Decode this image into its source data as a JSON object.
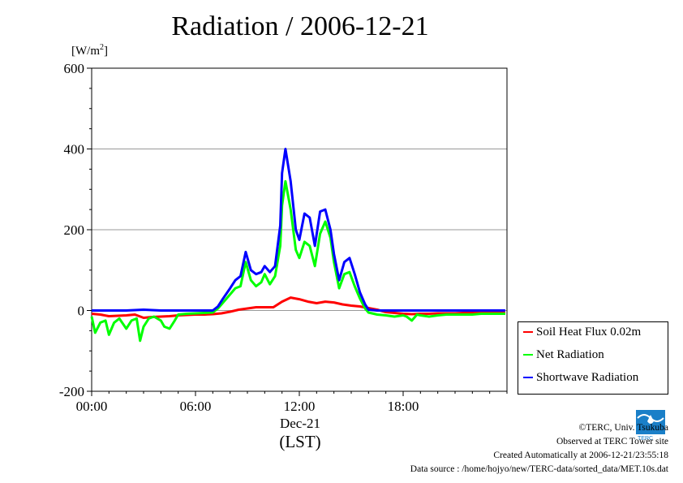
{
  "title": "Radiation / 2006-12-21",
  "unit_label": "[W/m",
  "unit_sup": "2",
  "unit_close": "]",
  "x_date_label": "Dec-21",
  "x_axis_label": "(LST)",
  "credits": {
    "line1": "©TERC, Univ. Tsukuba",
    "line2": "Observed at TERC Tower site",
    "line3": "Created Automatically at 2006-12-21/23:55:18",
    "line4": "Data source : /home/hojyo/new/TERC-data/sorted_data/MET.10s.dat"
  },
  "logo_text": "TERC",
  "colors": {
    "soil": "#ff0000",
    "net": "#00ff00",
    "shortwave": "#0000ff",
    "grid": "#999999"
  },
  "chart_data": {
    "type": "line",
    "title": "Radiation / 2006-12-21",
    "ylabel": "[W/m2]",
    "xlabel": "(LST)",
    "x_unit": "hour (LST)",
    "xlim": [
      0,
      24
    ],
    "ylim": [
      -200,
      600
    ],
    "x_ticks": [
      {
        "value": 0,
        "label": "00:00"
      },
      {
        "value": 6,
        "label": "06:00"
      },
      {
        "value": 12,
        "label": "12:00"
      },
      {
        "value": 18,
        "label": "18:00"
      }
    ],
    "y_ticks": [
      -200,
      0,
      200,
      400,
      600
    ],
    "grid": true,
    "legend_position": "bottom-right",
    "series": [
      {
        "name": "Soil Heat Flux 0.02m",
        "color": "#ff0000",
        "x": [
          0,
          0.5,
          1,
          1.5,
          2,
          2.5,
          3,
          3.5,
          4,
          4.5,
          5,
          5.5,
          6,
          6.5,
          7,
          7.5,
          8,
          8.5,
          9,
          9.5,
          10,
          10.5,
          11,
          11.5,
          12,
          12.5,
          13,
          13.5,
          14,
          14.5,
          15,
          15.5,
          16,
          16.5,
          17,
          17.5,
          18,
          18.5,
          19,
          19.5,
          20,
          20.5,
          21,
          21.5,
          22,
          22.5,
          23,
          23.5,
          23.9
        ],
        "y": [
          -8,
          -10,
          -14,
          -13,
          -12,
          -10,
          -18,
          -16,
          -15,
          -14,
          -12,
          -11,
          -10,
          -10,
          -9,
          -7,
          -3,
          2,
          5,
          8,
          8,
          8,
          22,
          32,
          28,
          22,
          18,
          22,
          20,
          15,
          12,
          10,
          6,
          2,
          -4,
          -6,
          -8,
          -9,
          -8,
          -8,
          -7,
          -7,
          -7,
          -6,
          -6,
          -6,
          -6,
          -6,
          -6
        ]
      },
      {
        "name": "Net Radiation",
        "color": "#00ff00",
        "x": [
          0,
          0.2,
          0.5,
          0.8,
          1,
          1.3,
          1.6,
          2,
          2.3,
          2.6,
          2.8,
          3,
          3.3,
          3.6,
          4,
          4.2,
          4.5,
          4.8,
          5,
          5.5,
          6,
          6.5,
          7,
          7.3,
          7.6,
          8,
          8.3,
          8.6,
          8.9,
          9.2,
          9.5,
          9.8,
          10,
          10.3,
          10.6,
          10.9,
          11,
          11.2,
          11.5,
          11.8,
          12,
          12.3,
          12.6,
          12.9,
          13.2,
          13.5,
          13.8,
          14,
          14.3,
          14.6,
          14.9,
          15.2,
          15.5,
          15.8,
          16,
          16.5,
          17,
          17.5,
          18,
          18.2,
          18.5,
          18.8,
          19,
          19.5,
          20,
          20.5,
          21,
          21.5,
          22,
          22.5,
          23,
          23.5,
          23.9
        ],
        "y": [
          -15,
          -55,
          -30,
          -25,
          -60,
          -30,
          -20,
          -45,
          -25,
          -20,
          -75,
          -40,
          -20,
          -15,
          -25,
          -40,
          -45,
          -25,
          -10,
          -8,
          -7,
          -6,
          -5,
          5,
          20,
          40,
          55,
          60,
          120,
          75,
          60,
          70,
          90,
          65,
          85,
          160,
          260,
          320,
          250,
          150,
          130,
          170,
          160,
          110,
          190,
          220,
          180,
          120,
          55,
          90,
          95,
          60,
          30,
          5,
          -5,
          -10,
          -12,
          -15,
          -12,
          -15,
          -25,
          -10,
          -12,
          -15,
          -12,
          -10,
          -10,
          -10,
          -10,
          -8,
          -8,
          -8,
          -8
        ]
      },
      {
        "name": "Shortwave Radiation",
        "color": "#0000ff",
        "x": [
          0,
          1,
          2,
          2.5,
          3,
          4,
          5,
          6,
          7,
          7.3,
          7.6,
          8,
          8.3,
          8.6,
          8.9,
          9.2,
          9.5,
          9.8,
          10,
          10.3,
          10.6,
          10.9,
          11,
          11.2,
          11.5,
          11.8,
          12,
          12.3,
          12.6,
          12.9,
          13.2,
          13.5,
          13.8,
          14,
          14.3,
          14.6,
          14.9,
          15.2,
          15.5,
          15.8,
          16,
          16.5,
          17,
          18,
          19,
          20,
          21,
          22,
          23,
          23.9
        ],
        "y": [
          0,
          0,
          0,
          1,
          2,
          0,
          0,
          0,
          0,
          10,
          30,
          55,
          75,
          85,
          145,
          100,
          90,
          95,
          110,
          95,
          110,
          210,
          340,
          400,
          320,
          200,
          175,
          240,
          230,
          160,
          245,
          250,
          200,
          140,
          75,
          120,
          130,
          90,
          45,
          15,
          2,
          0,
          0,
          0,
          0,
          0,
          0,
          0,
          0,
          0
        ]
      }
    ]
  }
}
